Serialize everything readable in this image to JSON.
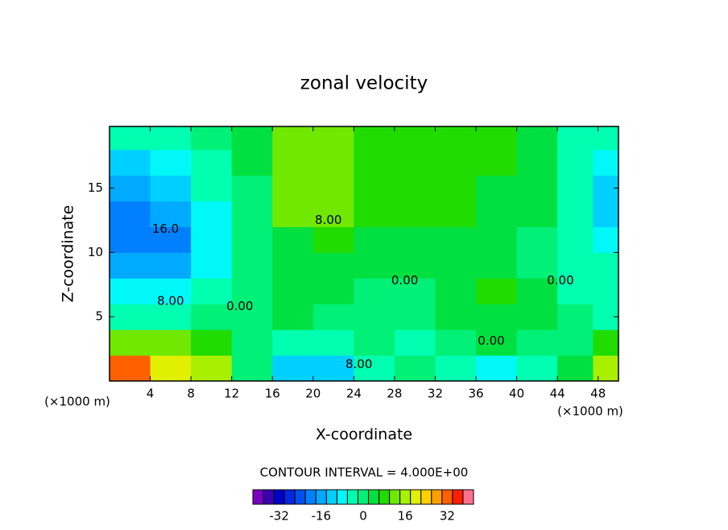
{
  "chart_data": {
    "type": "contour",
    "title": "zonal velocity",
    "x_label": "X-coordinate",
    "y_label": "Z-coordinate",
    "x_unit": "(×1000 m)",
    "y_unit": "(×1000 m)",
    "footnote": "CONTOUR INTERVAL = 4.000E+00",
    "xlim": [
      0,
      50
    ],
    "ylim": [
      0,
      19.8
    ],
    "xticks": [
      4,
      8,
      12,
      16,
      20,
      24,
      28,
      32,
      36,
      40,
      44,
      48
    ],
    "yticks": [
      5,
      10,
      15
    ],
    "x": [
      2,
      6,
      10,
      14,
      18,
      22,
      26,
      30,
      34,
      38,
      42,
      46,
      49
    ],
    "y": [
      1,
      3,
      5,
      7,
      9,
      11,
      13,
      15,
      17,
      19
    ],
    "z": [
      [
        32,
        20,
        16,
        0,
        -12,
        -12,
        -4,
        0,
        -4,
        -8,
        -4,
        4,
        16
      ],
      [
        12,
        12,
        8,
        0,
        -4,
        -4,
        0,
        -4,
        0,
        4,
        0,
        0,
        8
      ],
      [
        -4,
        -4,
        0,
        0,
        4,
        0,
        0,
        0,
        4,
        4,
        4,
        0,
        -4
      ],
      [
        -8,
        -8,
        -4,
        0,
        4,
        4,
        0,
        0,
        4,
        8,
        4,
        -4,
        -4
      ],
      [
        -16,
        -16,
        -8,
        0,
        4,
        4,
        4,
        4,
        4,
        4,
        0,
        -4,
        -4
      ],
      [
        -20,
        -20,
        -8,
        0,
        4,
        8,
        4,
        4,
        4,
        4,
        0,
        -4,
        -8
      ],
      [
        -20,
        -16,
        -8,
        0,
        12,
        12,
        8,
        8,
        8,
        4,
        4,
        -4,
        -12
      ],
      [
        -16,
        -12,
        -4,
        0,
        12,
        12,
        8,
        8,
        8,
        4,
        4,
        -4,
        -12
      ],
      [
        -12,
        -8,
        -4,
        4,
        12,
        12,
        8,
        8,
        8,
        8,
        4,
        -4,
        -8
      ],
      [
        -4,
        -4,
        0,
        4,
        12,
        12,
        8,
        8,
        8,
        8,
        4,
        -4,
        -4
      ]
    ],
    "levels": [
      -42,
      -38,
      -34,
      -30,
      -26,
      -22,
      -18,
      -14,
      -10,
      -6,
      -2,
      2,
      6,
      10,
      14,
      18,
      22,
      26,
      30,
      34,
      38,
      42
    ],
    "colors": [
      "#7a00c0",
      "#3c00b4",
      "#0000c8",
      "#0028e0",
      "#0050f0",
      "#0080ff",
      "#00aaff",
      "#00d0ff",
      "#00f8f8",
      "#00ffb0",
      "#00f078",
      "#00e040",
      "#20dc00",
      "#70e800",
      "#a8f000",
      "#e0f000",
      "#ffd000",
      "#ffa000",
      "#ff6000",
      "#ff2000",
      "#ff7090"
    ],
    "colorbar_ticks": [
      -32,
      -16,
      0,
      16,
      32
    ],
    "contour_labels": [
      {
        "text": "16.0",
        "x": 5.5,
        "y": 11.8
      },
      {
        "text": "8.00",
        "x": 6,
        "y": 6.2
      },
      {
        "text": "0.00",
        "x": 12.8,
        "y": 5.8
      },
      {
        "text": "8.00",
        "x": 21.5,
        "y": 12.5
      },
      {
        "text": "0.00",
        "x": 29,
        "y": 7.8
      },
      {
        "text": "0.00",
        "x": 44.3,
        "y": 7.8
      },
      {
        "text": "0.00",
        "x": 37.5,
        "y": 3.1
      },
      {
        "text": "8.00",
        "x": 24.5,
        "y": 1.3
      }
    ]
  }
}
